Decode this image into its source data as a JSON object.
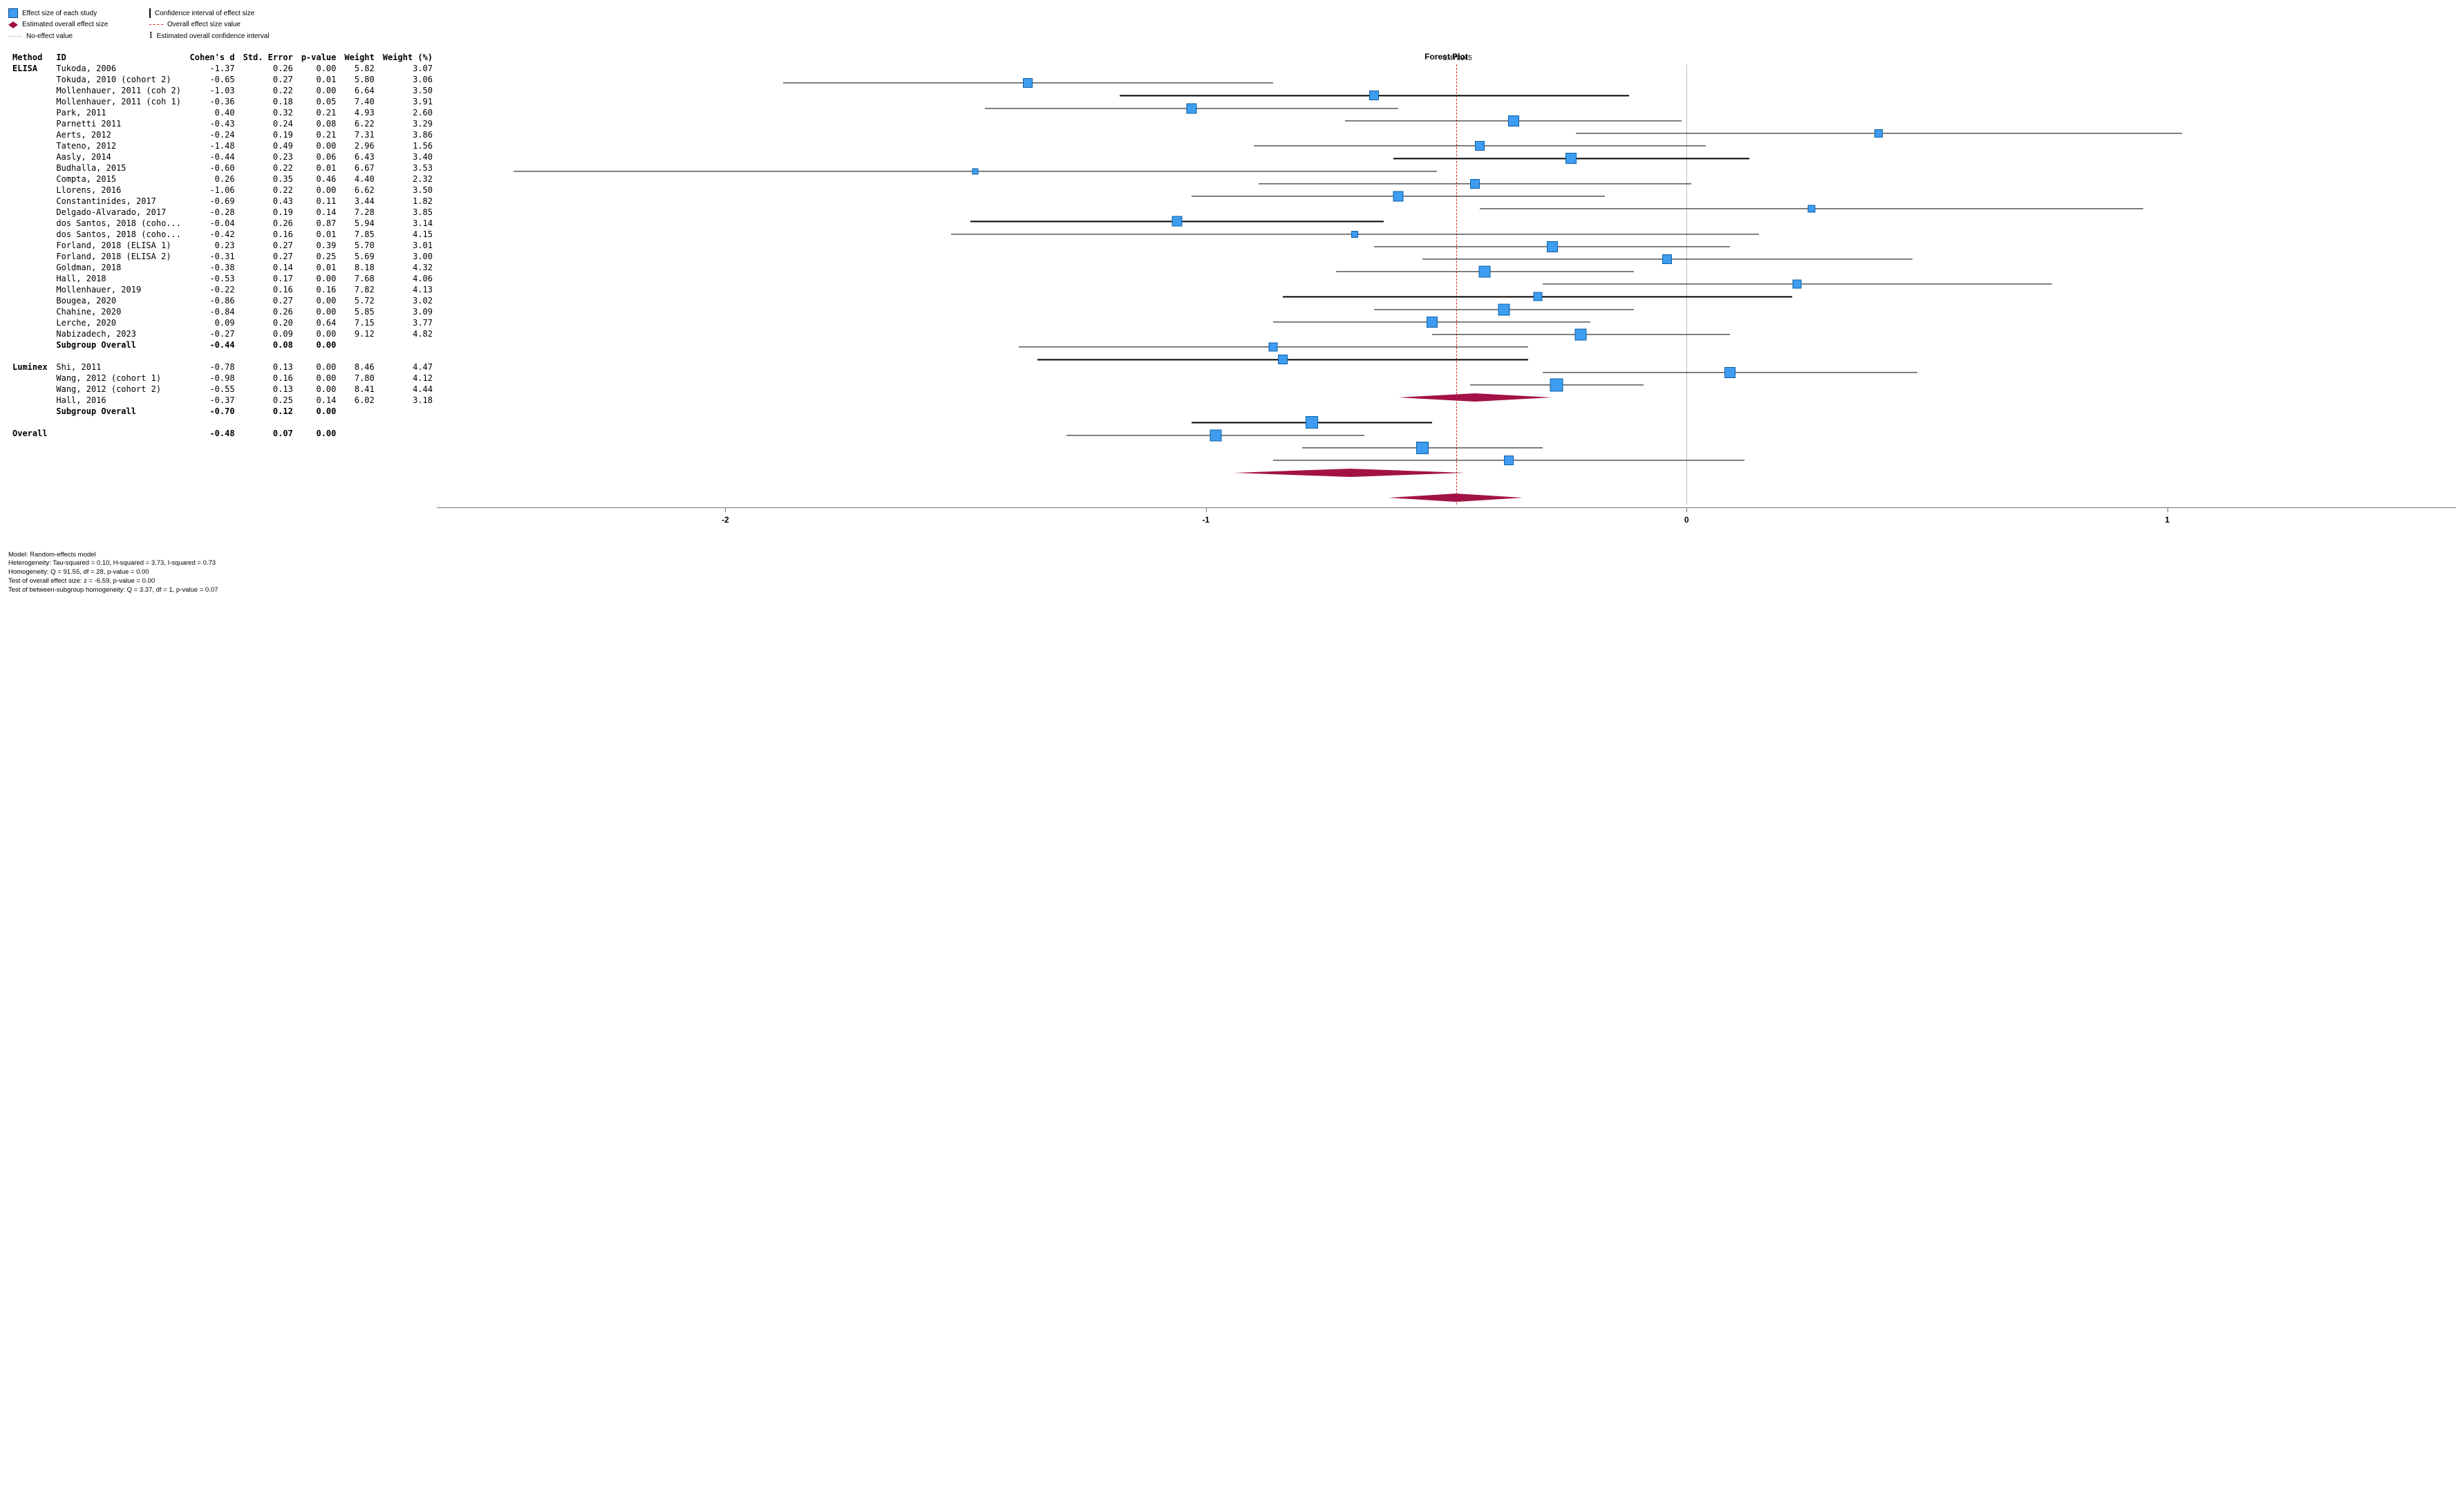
{
  "plot_title": "Forest Plot",
  "legend": {
    "effect_study": "Effect size of each study",
    "overall_effect": "Estimated overall effect size",
    "no_effect": "No-effect value",
    "ci_effect": "Confidence interval of effect size",
    "overall_value": "Overall effect size value",
    "overall_ci": "Estimated overall confidence interval"
  },
  "columns": {
    "method": "Method",
    "id": "ID",
    "cohen": "Cohen's d",
    "se": "Std. Error",
    "p": "p-value",
    "weight": "Weight",
    "weight_pct": "Weight (%)"
  },
  "style": {
    "box_color": "#3e9df0",
    "box_border": "#0b5fa5",
    "diamond_color": "#a31246",
    "ci_color": "#000000",
    "overall_line_color": "#d22e2e",
    "zero_line_color": "#bfbfbf",
    "axis_color": "#777777",
    "background": "#ffffff",
    "xlim": [
      -2.6,
      1.6
    ],
    "ticks": [
      -2,
      -1,
      0,
      1
    ],
    "overall_value": -0.478945,
    "overall_value_label": "-0.478945",
    "row_height": 18.2,
    "header_font": 12
  },
  "rows": [
    {
      "type": "header"
    },
    {
      "type": "study",
      "method": "ELISA",
      "id": "Tukoda, 2006",
      "d": -1.37,
      "se": 0.26,
      "p": 0.0,
      "w": 5.82,
      "wp": 3.07,
      "lo": -1.88,
      "hi": -0.86,
      "size": 12
    },
    {
      "type": "study",
      "method": "",
      "id": "Tokuda, 2010 (cohort 2)",
      "d": -0.65,
      "se": 0.27,
      "p": 0.01,
      "w": 5.8,
      "wp": 3.06,
      "lo": -1.18,
      "hi": -0.12,
      "size": 12
    },
    {
      "type": "study",
      "method": "",
      "id": "Mollenhauer, 2011 (coh 2)",
      "d": -1.03,
      "se": 0.22,
      "p": 0.0,
      "w": 6.64,
      "wp": 3.5,
      "lo": -1.46,
      "hi": -0.6,
      "size": 13
    },
    {
      "type": "study",
      "method": "",
      "id": "Mollenhauer, 2011 (coh 1)",
      "d": -0.36,
      "se": 0.18,
      "p": 0.05,
      "w": 7.4,
      "wp": 3.91,
      "lo": -0.71,
      "hi": -0.01,
      "size": 14
    },
    {
      "type": "study",
      "method": "",
      "id": "Park, 2011",
      "d": 0.4,
      "se": 0.32,
      "p": 0.21,
      "w": 4.93,
      "wp": 2.6,
      "lo": -0.23,
      "hi": 1.03,
      "size": 10
    },
    {
      "type": "study",
      "method": "",
      "id": "Parnetti 2011",
      "d": -0.43,
      "se": 0.24,
      "p": 0.08,
      "w": 6.22,
      "wp": 3.29,
      "lo": -0.9,
      "hi": 0.04,
      "size": 12
    },
    {
      "type": "study",
      "method": "",
      "id": "Aerts, 2012",
      "d": -0.24,
      "se": 0.19,
      "p": 0.21,
      "w": 7.31,
      "wp": 3.86,
      "lo": -0.61,
      "hi": 0.13,
      "size": 14
    },
    {
      "type": "study",
      "method": "",
      "id": "Tateno, 2012",
      "d": -1.48,
      "se": 0.49,
      "p": 0.0,
      "w": 2.96,
      "wp": 1.56,
      "lo": -2.44,
      "hi": -0.52,
      "size": 7
    },
    {
      "type": "study",
      "method": "",
      "id": "Aasly, 2014",
      "d": -0.44,
      "se": 0.23,
      "p": 0.06,
      "w": 6.43,
      "wp": 3.4,
      "lo": -0.89,
      "hi": 0.01,
      "size": 12
    },
    {
      "type": "study",
      "method": "",
      "id": "Budhalla, 2015",
      "d": -0.6,
      "se": 0.22,
      "p": 0.01,
      "w": 6.67,
      "wp": 3.53,
      "lo": -1.03,
      "hi": -0.17,
      "size": 13
    },
    {
      "type": "study",
      "method": "",
      "id": "Compta, 2015",
      "d": 0.26,
      "se": 0.35,
      "p": 0.46,
      "w": 4.4,
      "wp": 2.32,
      "lo": -0.43,
      "hi": 0.95,
      "size": 9
    },
    {
      "type": "study",
      "method": "",
      "id": "Llorens, 2016",
      "d": -1.06,
      "se": 0.22,
      "p": 0.0,
      "w": 6.62,
      "wp": 3.5,
      "lo": -1.49,
      "hi": -0.63,
      "size": 13
    },
    {
      "type": "study",
      "method": "",
      "id": "Constantinides, 2017",
      "d": -0.69,
      "se": 0.43,
      "p": 0.11,
      "w": 3.44,
      "wp": 1.82,
      "lo": -1.53,
      "hi": 0.15,
      "size": 8
    },
    {
      "type": "study",
      "method": "",
      "id": "Delgado-Alvarado, 2017",
      "d": -0.28,
      "se": 0.19,
      "p": 0.14,
      "w": 7.28,
      "wp": 3.85,
      "lo": -0.65,
      "hi": 0.09,
      "size": 14
    },
    {
      "type": "study",
      "method": "",
      "id": "dos Santos, 2018 (coho...",
      "d": -0.04,
      "se": 0.26,
      "p": 0.87,
      "w": 5.94,
      "wp": 3.14,
      "lo": -0.55,
      "hi": 0.47,
      "size": 12
    },
    {
      "type": "study",
      "method": "",
      "id": "dos Santos, 2018 (coho...",
      "d": -0.42,
      "se": 0.16,
      "p": 0.01,
      "w": 7.85,
      "wp": 4.15,
      "lo": -0.73,
      "hi": -0.11,
      "size": 15
    },
    {
      "type": "study",
      "method": "",
      "id": "Forland, 2018 (ELISA 1)",
      "d": 0.23,
      "se": 0.27,
      "p": 0.39,
      "w": 5.7,
      "wp": 3.01,
      "lo": -0.3,
      "hi": 0.76,
      "size": 11
    },
    {
      "type": "study",
      "method": "",
      "id": "Forland, 2018 (ELISA 2)",
      "d": -0.31,
      "se": 0.27,
      "p": 0.25,
      "w": 5.69,
      "wp": 3.0,
      "lo": -0.84,
      "hi": 0.22,
      "size": 11
    },
    {
      "type": "study",
      "method": "",
      "id": "Goldman, 2018",
      "d": -0.38,
      "se": 0.14,
      "p": 0.01,
      "w": 8.18,
      "wp": 4.32,
      "lo": -0.65,
      "hi": -0.11,
      "size": 15
    },
    {
      "type": "study",
      "method": "",
      "id": "Hall, 2018",
      "d": -0.53,
      "se": 0.17,
      "p": 0.0,
      "w": 7.68,
      "wp": 4.06,
      "lo": -0.86,
      "hi": -0.2,
      "size": 14
    },
    {
      "type": "study",
      "method": "",
      "id": "Mollenhauer, 2019",
      "d": -0.22,
      "se": 0.16,
      "p": 0.16,
      "w": 7.82,
      "wp": 4.13,
      "lo": -0.53,
      "hi": 0.09,
      "size": 15
    },
    {
      "type": "study",
      "method": "",
      "id": "Bougea, 2020",
      "d": -0.86,
      "se": 0.27,
      "p": 0.0,
      "w": 5.72,
      "wp": 3.02,
      "lo": -1.39,
      "hi": -0.33,
      "size": 11
    },
    {
      "type": "study",
      "method": "",
      "id": "Chahine, 2020",
      "d": -0.84,
      "se": 0.26,
      "p": 0.0,
      "w": 5.85,
      "wp": 3.09,
      "lo": -1.35,
      "hi": -0.33,
      "size": 12
    },
    {
      "type": "study",
      "method": "",
      "id": "Lerche, 2020",
      "d": 0.09,
      "se": 0.2,
      "p": 0.64,
      "w": 7.15,
      "wp": 3.77,
      "lo": -0.3,
      "hi": 0.48,
      "size": 14
    },
    {
      "type": "study",
      "method": "",
      "id": "Nabizadech, 2023",
      "d": -0.27,
      "se": 0.09,
      "p": 0.0,
      "w": 9.12,
      "wp": 4.82,
      "lo": -0.45,
      "hi": -0.09,
      "size": 17
    },
    {
      "type": "subgroup",
      "method": "",
      "id": "Subgroup Overall",
      "d": -0.44,
      "se": 0.08,
      "p": 0.0,
      "lo": -0.6,
      "hi": -0.28
    },
    {
      "type": "blank"
    },
    {
      "type": "study",
      "method": "Luminex",
      "id": "Shi, 2011",
      "d": -0.78,
      "se": 0.13,
      "p": 0.0,
      "w": 8.46,
      "wp": 4.47,
      "lo": -1.03,
      "hi": -0.53,
      "size": 16
    },
    {
      "type": "study",
      "method": "",
      "id": "Wang, 2012 (cohort 1)",
      "d": -0.98,
      "se": 0.16,
      "p": 0.0,
      "w": 7.8,
      "wp": 4.12,
      "lo": -1.29,
      "hi": -0.67,
      "size": 15
    },
    {
      "type": "study",
      "method": "",
      "id": "Wang, 2012 (cohort 2)",
      "d": -0.55,
      "se": 0.13,
      "p": 0.0,
      "w": 8.41,
      "wp": 4.44,
      "lo": -0.8,
      "hi": -0.3,
      "size": 16
    },
    {
      "type": "study",
      "method": "",
      "id": "Hall, 2016",
      "d": -0.37,
      "se": 0.25,
      "p": 0.14,
      "w": 6.02,
      "wp": 3.18,
      "lo": -0.86,
      "hi": 0.12,
      "size": 12
    },
    {
      "type": "subgroup",
      "method": "",
      "id": "Subgroup Overall",
      "d": -0.7,
      "se": 0.12,
      "p": 0.0,
      "lo": -0.94,
      "hi": -0.46
    },
    {
      "type": "blank"
    },
    {
      "type": "overall",
      "method": "Overall",
      "id": "",
      "d": -0.48,
      "se": 0.07,
      "p": 0.0,
      "lo": -0.62,
      "hi": -0.34
    }
  ],
  "footer": [
    "Model: Random-effects model",
    "Heterogeneity: Tau-squared = 0.10, H-squared = 3.73, I-squared = 0.73",
    "Homogeneity: Q = 91.55, df = 28, p-value = 0.00",
    "Test of overall effect size: z = -6.59, p-value = 0.00",
    "Test of between-subgroup homogeneity: Q = 3.37, df = 1, p-value = 0.07"
  ]
}
